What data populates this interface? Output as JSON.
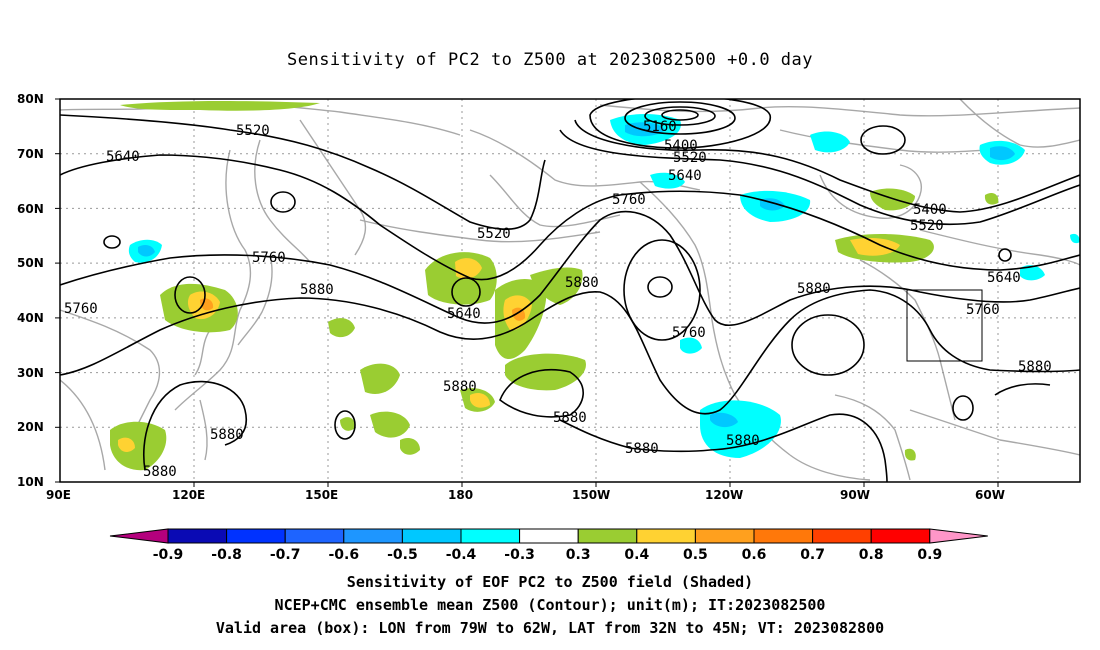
{
  "title": "Sensitivity of PC2 to Z500 at 2023082500 +0.0 day",
  "axes": {
    "lat_ticks": [
      "80N",
      "70N",
      "60N",
      "50N",
      "40N",
      "30N",
      "20N",
      "10N"
    ],
    "lon_ticks": [
      "90E",
      "120E",
      "150E",
      "180",
      "150W",
      "120W",
      "90W",
      "60W"
    ]
  },
  "contour_labels": [
    {
      "id": "c5520a",
      "text": "5520"
    },
    {
      "id": "c5640a",
      "text": "5640"
    },
    {
      "id": "c5160",
      "text": "5160"
    },
    {
      "id": "c5400a",
      "text": "5400"
    },
    {
      "id": "c5520b",
      "text": "5520"
    },
    {
      "id": "c5640b",
      "text": "5640"
    },
    {
      "id": "c5760a",
      "text": "5760"
    },
    {
      "id": "c5520c",
      "text": "5520"
    },
    {
      "id": "c5400b",
      "text": "5400"
    },
    {
      "id": "c5520d",
      "text": "5520"
    },
    {
      "id": "c5760b",
      "text": "5760"
    },
    {
      "id": "c5880a",
      "text": "5880"
    },
    {
      "id": "c5640c",
      "text": "5640"
    },
    {
      "id": "c5880b",
      "text": "5880"
    },
    {
      "id": "c5760c",
      "text": "5760"
    },
    {
      "id": "c5880c",
      "text": "5880"
    },
    {
      "id": "c5640d",
      "text": "5640"
    },
    {
      "id": "c5760d",
      "text": "5760"
    },
    {
      "id": "c5760e",
      "text": "5760"
    },
    {
      "id": "c5880d",
      "text": "5880"
    },
    {
      "id": "c5880e",
      "text": "5880"
    },
    {
      "id": "c5880f",
      "text": "5880"
    },
    {
      "id": "c5880g",
      "text": "5880"
    },
    {
      "id": "c5880h",
      "text": "5880"
    },
    {
      "id": "c5880i",
      "text": "5880"
    },
    {
      "id": "c5880j",
      "text": "5880"
    }
  ],
  "colorbar": {
    "colors": [
      "#b4007d",
      "#0a0ab4",
      "#0032ff",
      "#1e64ff",
      "#1e96ff",
      "#00c8ff",
      "#00ffff",
      "#ffffff",
      "#9acd32",
      "#ffd232",
      "#ffa01e",
      "#ff780a",
      "#ff4000",
      "#ff0000",
      "#ff96c8"
    ],
    "tick_labels": [
      "-0.9",
      "-0.8",
      "-0.7",
      "-0.6",
      "-0.5",
      "-0.4",
      "-0.3",
      "0.3",
      "0.4",
      "0.5",
      "0.6",
      "0.7",
      "0.8",
      "0.9"
    ]
  },
  "captions": [
    "Sensitivity of EOF PC2 to Z500 field (Shaded)",
    "NCEP+CMC ensemble mean Z500 (Contour); unit(m); IT:2023082500",
    "Valid area (box): LON from 79W to 62W, LAT from 32N to 45N; VT: 2023082800"
  ]
}
